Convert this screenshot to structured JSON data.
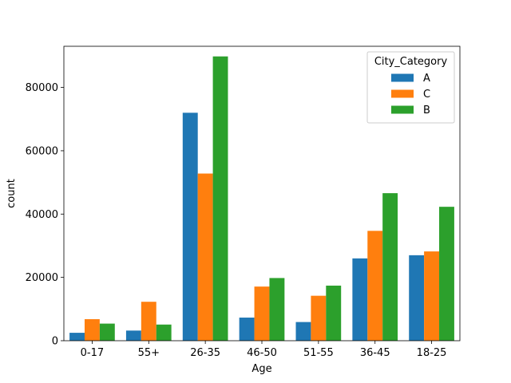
{
  "chart_data": {
    "type": "bar",
    "xlabel": "Age",
    "ylabel": "count",
    "categories": [
      "0-17",
      "55+",
      "26-35",
      "46-50",
      "51-55",
      "36-45",
      "18-25"
    ],
    "ylim": [
      0,
      93000
    ],
    "yticks": [
      0,
      20000,
      40000,
      60000,
      80000
    ],
    "legend": {
      "title": "City_Category",
      "placement": "top-right"
    },
    "series": [
      {
        "name": "A",
        "color": "#1f77b4",
        "values": [
          2500,
          3200,
          72000,
          7300,
          5900,
          26000,
          27000
        ]
      },
      {
        "name": "C",
        "color": "#ff7f0e",
        "values": [
          6800,
          12300,
          52800,
          17100,
          14200,
          34700,
          28200
        ]
      },
      {
        "name": "B",
        "color": "#2ca02c",
        "values": [
          5400,
          5100,
          89800,
          19800,
          17400,
          46600,
          42300
        ]
      }
    ]
  }
}
